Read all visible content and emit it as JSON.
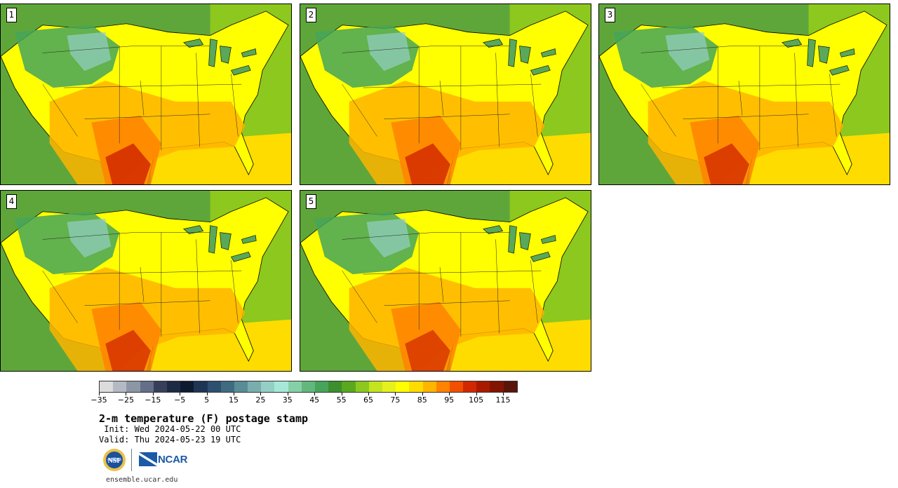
{
  "panels": [
    {
      "label": "1"
    },
    {
      "label": "2"
    },
    {
      "label": "3"
    },
    {
      "label": "4"
    },
    {
      "label": "5"
    }
  ],
  "colorbar": {
    "min": -35,
    "max": 125,
    "step": 5,
    "tick_labels": [
      "−35",
      "−25",
      "−15",
      "−5",
      "5",
      "15",
      "25",
      "35",
      "45",
      "55",
      "65",
      "75",
      "85",
      "95",
      "105",
      "115"
    ],
    "colors": [
      "#dcdcdc",
      "#b4b9c3",
      "#8c96a5",
      "#64708a",
      "#36405a",
      "#1c2a46",
      "#0e1a30",
      "#1e3555",
      "#2d5070",
      "#3f6b82",
      "#5a8c96",
      "#7aaeae",
      "#94cfc6",
      "#a6e8d8",
      "#86d0a8",
      "#62b87c",
      "#46a55a",
      "#3b8f2d",
      "#5aa81e",
      "#8cc81e",
      "#c4e41e",
      "#e6f01e",
      "#ffff00",
      "#ffdc00",
      "#ffb400",
      "#ff8200",
      "#f05000",
      "#d22800",
      "#aa1a00",
      "#821400",
      "#5a140a"
    ]
  },
  "title": "2-m temperature (F) postage stamp",
  "init_line": " Init: Wed 2024-05-22 00 UTC",
  "valid_line": "Valid: Thu 2024-05-23 19 UTC",
  "logos": [
    "NSF",
    "NCAR"
  ],
  "ncar_text": "NCAR",
  "website": "ensemble.ucar.edu"
}
